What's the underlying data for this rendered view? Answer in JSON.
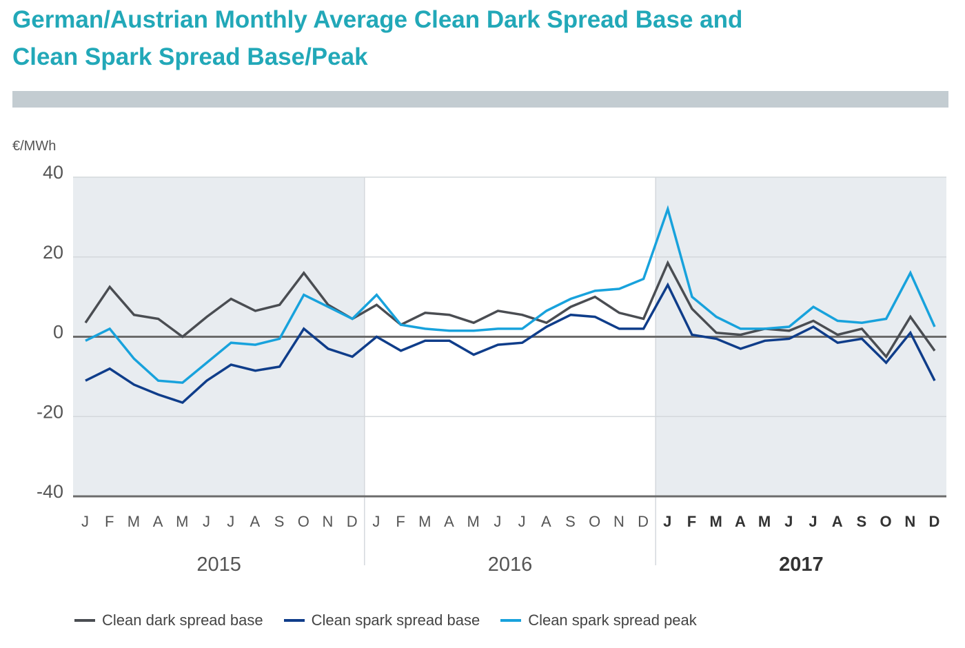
{
  "title_line1": "German/Austrian Monthly Average Clean Dark Spread Base and",
  "title_line2": "Clean Spark Spread Base/Peak",
  "colors": {
    "title": "#22a8b8",
    "band": "#e8ecf0",
    "grid": "#d4d8dc",
    "zero_line": "#6b6b6b",
    "bottom_axis": "#6b6b6b",
    "label": "#555555"
  },
  "chart_data": {
    "type": "line",
    "yunit": "€/MWh",
    "ylim": [
      -40,
      40
    ],
    "yticks": [
      {
        "value": 40,
        "label": "40"
      },
      {
        "value": 20,
        "label": "20"
      },
      {
        "value": 0,
        "label": "0"
      },
      {
        "value": -20,
        "label": "-20"
      },
      {
        "value": -40,
        "label": "-40"
      }
    ],
    "month_labels": [
      "J",
      "F",
      "M",
      "A",
      "M",
      "J",
      "J",
      "A",
      "S",
      "O",
      "N",
      "D",
      "J",
      "F",
      "M",
      "A",
      "M",
      "J",
      "J",
      "A",
      "S",
      "O",
      "N",
      "D",
      "J",
      "F",
      "M",
      "A",
      "M",
      "J",
      "J",
      "A",
      "S",
      "O",
      "N",
      "D"
    ],
    "years": [
      {
        "label": "2015",
        "bold": false,
        "shaded": true
      },
      {
        "label": "2016",
        "bold": false,
        "shaded": false
      },
      {
        "label": "2017",
        "bold": true,
        "shaded": true
      }
    ],
    "series": [
      {
        "name": "Clean dark spread base",
        "color": "#4a4d52",
        "values": [
          3.5,
          12.5,
          5.5,
          4.5,
          0,
          5,
          9.5,
          6.5,
          8,
          16,
          8,
          4.5,
          8,
          3,
          6,
          5.5,
          3.5,
          6.5,
          5.5,
          3.5,
          7.5,
          10,
          6,
          4.5,
          18.5,
          7,
          1,
          0.5,
          2,
          1.5,
          4,
          0.5,
          2,
          -5,
          5,
          -3.5
        ]
      },
      {
        "name": "Clean spark spread base",
        "color": "#0f3d8a",
        "values": [
          -11,
          -8,
          -12,
          -14.5,
          -16.5,
          -11,
          -7,
          -8.5,
          -7.5,
          2,
          -3,
          -5,
          0,
          -3.5,
          -1,
          -1,
          -4.5,
          -2,
          -1.5,
          2.5,
          5.5,
          5,
          2,
          2,
          13,
          0.5,
          -0.5,
          -3,
          -1,
          -0.5,
          2.5,
          -1.5,
          -0.5,
          -6.5,
          1,
          -11
        ]
      },
      {
        "name": "Clean spark spread peak",
        "color": "#18a2dc",
        "values": [
          -1,
          2,
          -5.5,
          -11,
          -11.5,
          -6.5,
          -1.5,
          -2,
          -0.5,
          10.5,
          7.5,
          4.5,
          10.5,
          3,
          2,
          1.5,
          1.5,
          2,
          2,
          6.5,
          9.5,
          11.5,
          12,
          14.5,
          32,
          10,
          5,
          2,
          2,
          2.5,
          7.5,
          4,
          3.5,
          4.5,
          16,
          2.5
        ]
      }
    ]
  }
}
